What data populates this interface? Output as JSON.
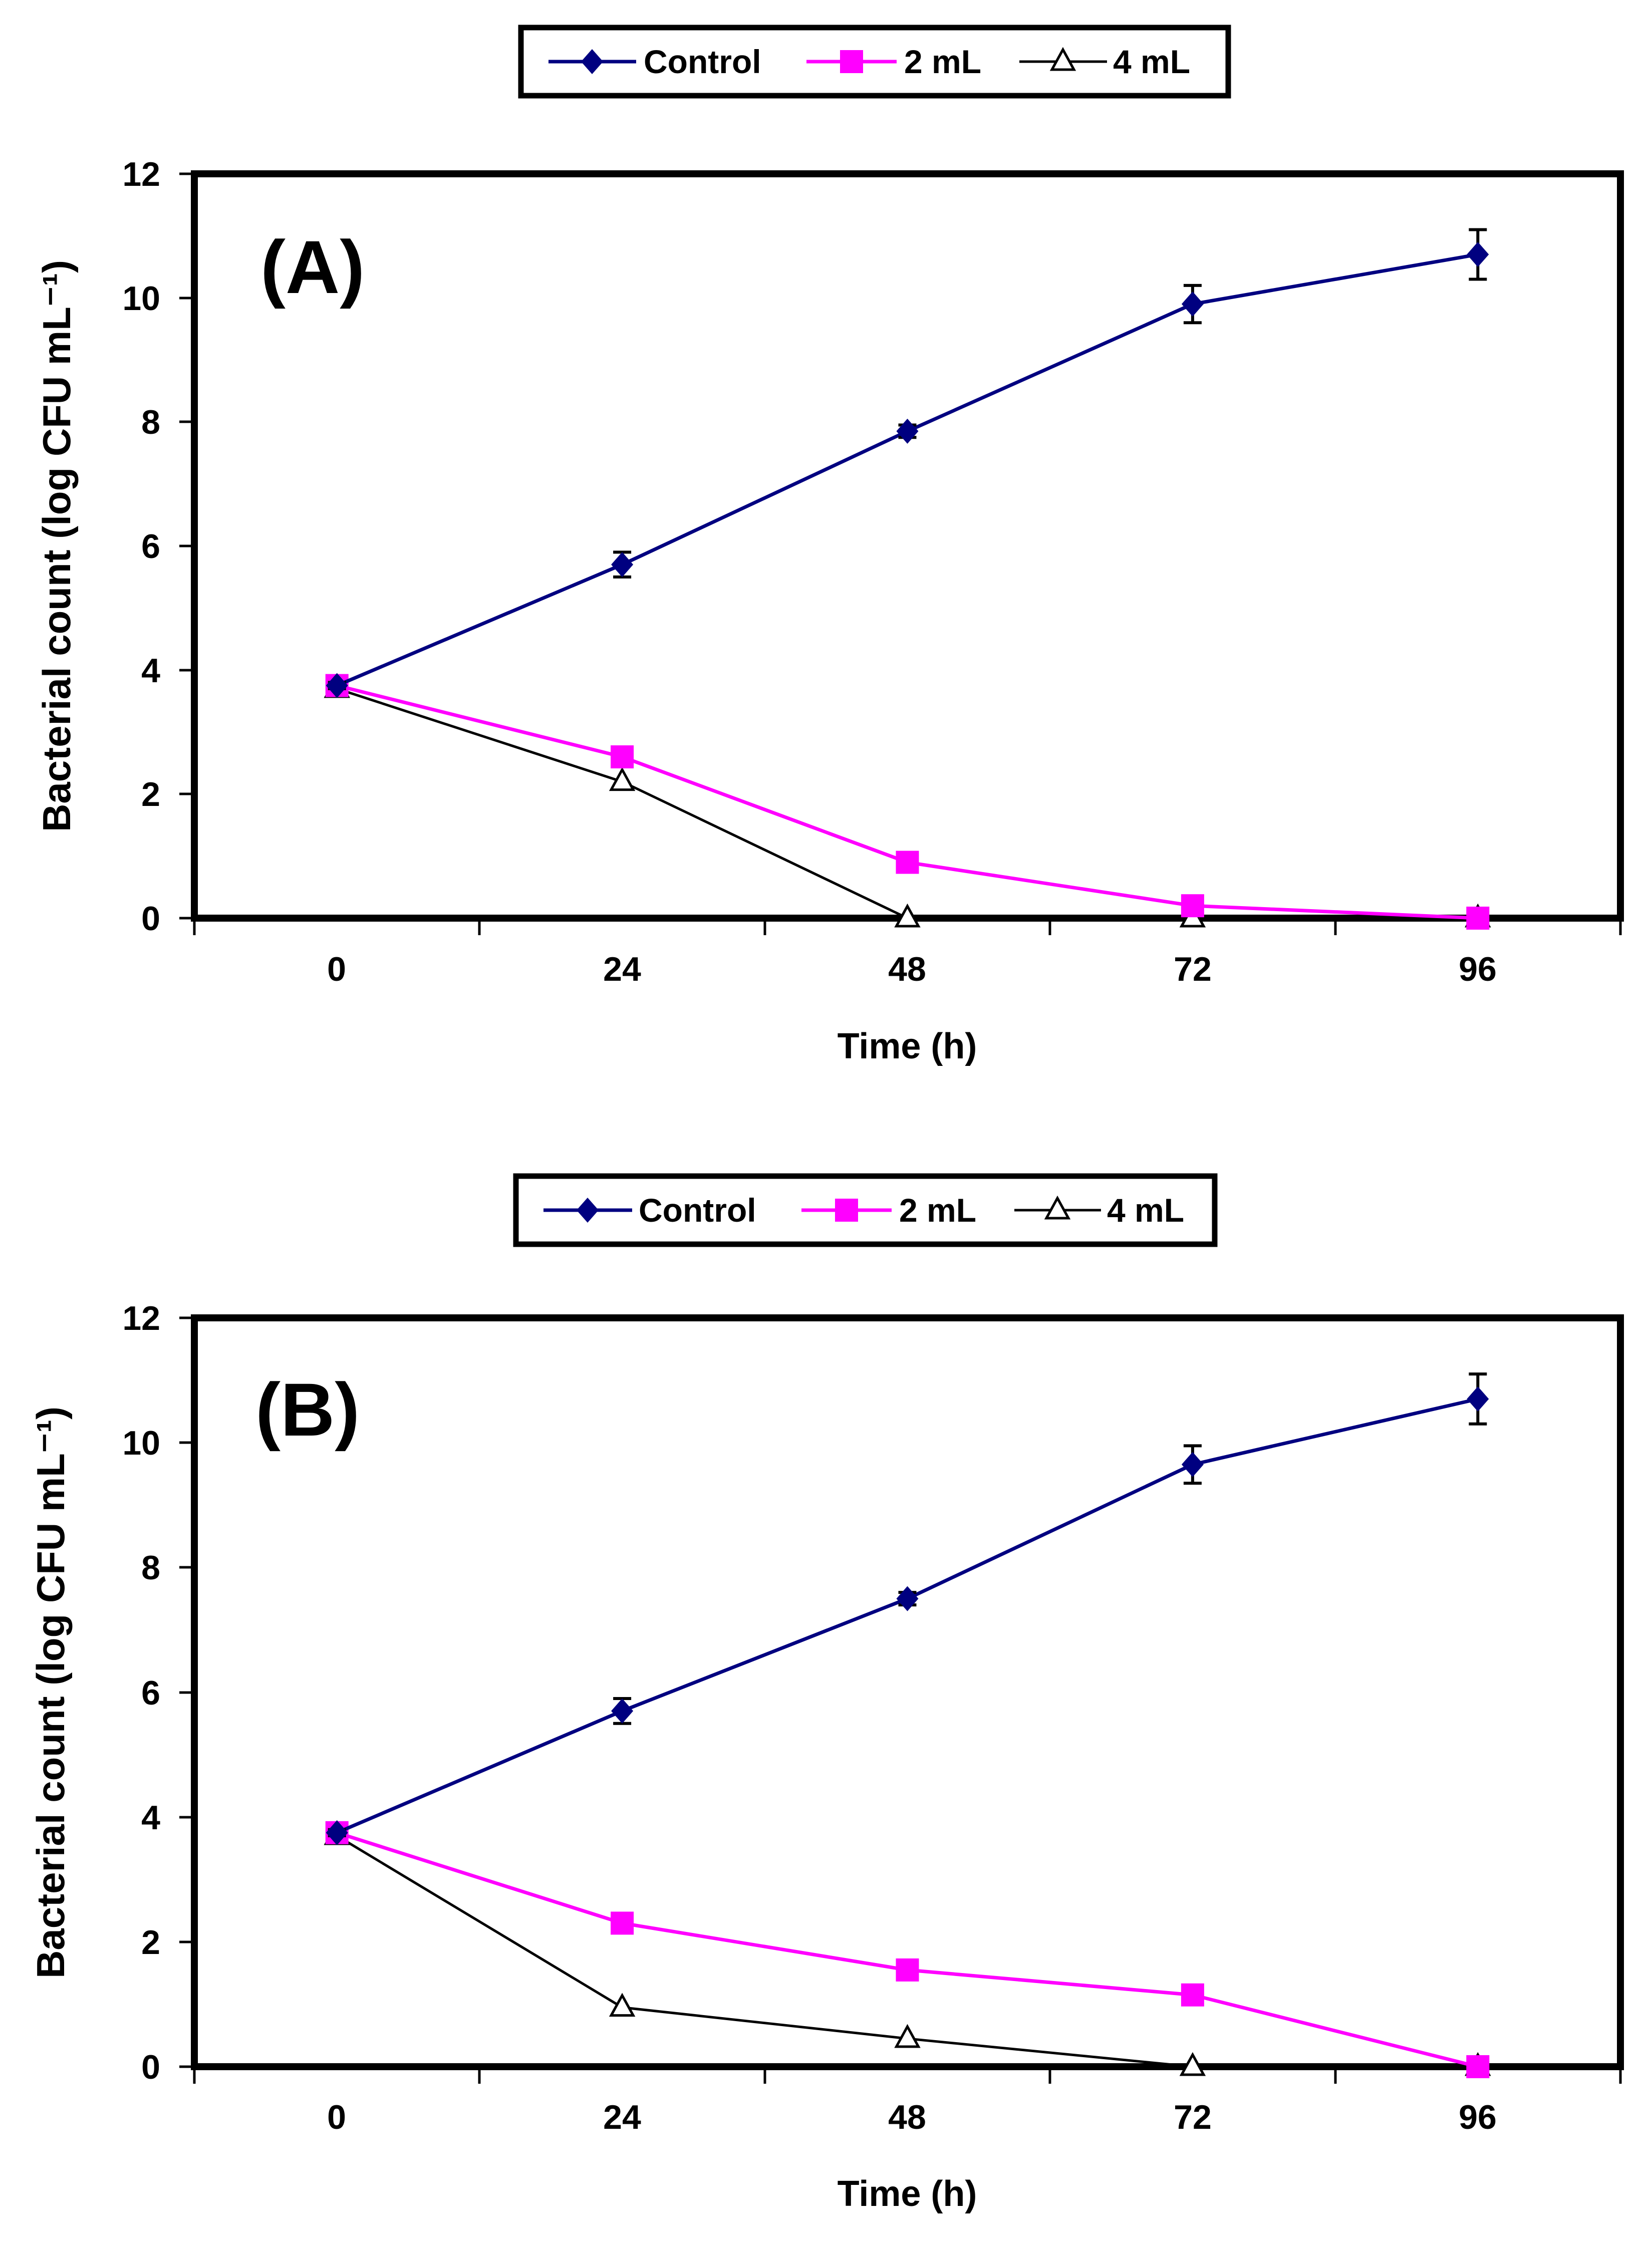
{
  "figure": {
    "panels": [
      {
        "panel_label": "(A)"
      },
      {
        "panel_label": "(B)"
      }
    ]
  },
  "chart_data": [
    {
      "type": "line",
      "panel_label": "(A)",
      "title": "",
      "xlabel": "Time (h)",
      "ylabel": "Bacterial count (log CFU mL⁻¹)",
      "x": [
        0,
        24,
        48,
        72,
        96
      ],
      "x_ticks": [
        "0",
        "24",
        "48",
        "72",
        "96"
      ],
      "y_ticks": [
        "0",
        "2",
        "4",
        "6",
        "8",
        "10",
        "12"
      ],
      "xlim": [
        -12,
        108
      ],
      "ylim": [
        0,
        12
      ],
      "grid": false,
      "legend_position": "top",
      "series": [
        {
          "name": "Control",
          "color": "#000080",
          "marker": "diamond",
          "values": [
            3.75,
            5.7,
            7.85,
            9.9,
            10.7
          ],
          "errors": [
            0.05,
            0.2,
            0.1,
            0.3,
            0.4
          ]
        },
        {
          "name": "2 mL",
          "color": "#ff00ff",
          "marker": "square",
          "values": [
            3.75,
            2.6,
            0.9,
            0.2,
            0.0
          ]
        },
        {
          "name": "4 mL",
          "color": "#000000",
          "marker": "triangle-open",
          "values": [
            3.7,
            2.2,
            0.0,
            0.0,
            0.0
          ]
        }
      ]
    },
    {
      "type": "line",
      "panel_label": "(B)",
      "title": "",
      "xlabel": "Time (h)",
      "ylabel": "Bacterial count (log CFU mL⁻¹)",
      "x": [
        0,
        24,
        48,
        72,
        96
      ],
      "x_ticks": [
        "0",
        "24",
        "48",
        "72",
        "96"
      ],
      "y_ticks": [
        "0",
        "2",
        "4",
        "6",
        "8",
        "10",
        "12"
      ],
      "xlim": [
        -12,
        108
      ],
      "ylim": [
        0,
        12
      ],
      "grid": false,
      "legend_position": "top",
      "series": [
        {
          "name": "Control",
          "color": "#000080",
          "marker": "diamond",
          "values": [
            3.75,
            5.7,
            7.5,
            9.65,
            10.7
          ],
          "errors": [
            0.05,
            0.2,
            0.1,
            0.3,
            0.4
          ]
        },
        {
          "name": "2 mL",
          "color": "#ff00ff",
          "marker": "square",
          "values": [
            3.75,
            2.3,
            1.55,
            1.15,
            0.0
          ]
        },
        {
          "name": "4 mL",
          "color": "#000000",
          "marker": "triangle-open",
          "values": [
            3.7,
            0.95,
            0.45,
            0.0,
            0.0
          ]
        }
      ]
    }
  ]
}
